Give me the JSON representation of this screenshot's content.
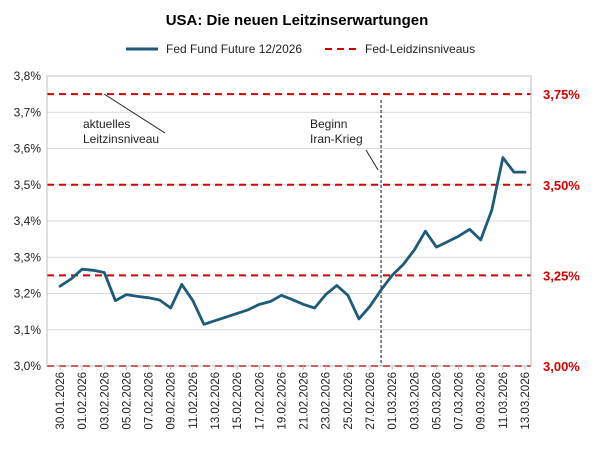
{
  "chart_data": {
    "type": "line",
    "title": "USA: Die neuen Leitzinserwartungen",
    "legend": {
      "placement": "top-center"
    },
    "series": [
      {
        "name": "Fed Fund Future 12/2026",
        "color": "#1d5b79",
        "x": [
          "30.01.2026",
          "31.01.2026",
          "01.02.2026",
          "02.02.2026",
          "03.02.2026",
          "04.02.2026",
          "05.02.2026",
          "06.02.2026",
          "07.02.2026",
          "08.02.2026",
          "09.02.2026",
          "10.02.2026",
          "11.02.2026",
          "12.02.2026",
          "13.02.2026",
          "14.02.2026",
          "15.02.2026",
          "16.02.2026",
          "17.02.2026",
          "18.02.2026",
          "19.02.2026",
          "20.02.2026",
          "21.02.2026",
          "22.02.2026",
          "23.02.2026",
          "24.02.2026",
          "25.02.2026",
          "26.02.2026",
          "27.02.2026",
          "28.02.2026",
          "01.03.2026",
          "02.03.2026",
          "03.03.2026",
          "04.03.2026",
          "05.03.2026",
          "06.03.2026",
          "07.03.2026",
          "08.03.2026",
          "09.03.2026",
          "10.03.2026",
          "11.03.2026",
          "12.03.2026",
          "13.03.2026"
        ],
        "values": [
          3.22,
          3.24,
          3.267,
          3.264,
          3.258,
          3.18,
          3.197,
          3.192,
          3.188,
          3.182,
          3.16,
          3.225,
          3.18,
          3.115,
          3.125,
          3.135,
          3.145,
          3.155,
          3.17,
          3.178,
          3.195,
          3.183,
          3.17,
          3.16,
          3.197,
          3.222,
          3.195,
          3.13,
          3.165,
          3.21,
          3.25,
          3.28,
          3.32,
          3.372,
          3.328,
          3.343,
          3.358,
          3.377,
          3.348,
          3.43,
          3.575,
          3.535,
          3.535
        ]
      },
      {
        "name": "Fed-Leidzinsniveaus",
        "color": "#d40000",
        "style": "dashed",
        "levels": [
          3.0,
          3.25,
          3.5,
          3.75
        ]
      }
    ],
    "y_left": {
      "min": 3.0,
      "max": 3.8,
      "ticks": [
        3.0,
        3.1,
        3.2,
        3.3,
        3.4,
        3.5,
        3.6,
        3.7,
        3.8
      ],
      "tick_labels": [
        "3,0%",
        "3,1%",
        "3,2%",
        "3,3%",
        "3,4%",
        "3,5%",
        "3,6%",
        "3,7%",
        "3,8%"
      ]
    },
    "y_right": {
      "tick_values": [
        3.0,
        3.25,
        3.5,
        3.75
      ],
      "tick_labels": [
        "3,00%",
        "3,25%",
        "3,50%",
        "3,75%"
      ],
      "color": "#d40000"
    },
    "x_ticks": [
      "30.01.2026",
      "01.02.2026",
      "03.02.2026",
      "05.02.2026",
      "07.02.2026",
      "09.02.2026",
      "11.02.2026",
      "13.02.2026",
      "15.02.2026",
      "17.02.2026",
      "19.02.2026",
      "21.02.2026",
      "23.02.2026",
      "25.02.2026",
      "27.02.2026",
      "01.03.2026",
      "03.03.2026",
      "05.03.2026",
      "07.03.2026",
      "09.03.2026",
      "11.03.2026",
      "13.03.2026"
    ],
    "grid": true,
    "annotations": [
      {
        "lines": [
          "aktuelles",
          "Leitzinsniveau"
        ],
        "points_to_level": 3.75,
        "points_to_date": "03.02.2026"
      },
      {
        "lines": [
          "Beginn",
          "Iran-Krieg"
        ],
        "marker_date": "28.02.2026"
      }
    ]
  }
}
